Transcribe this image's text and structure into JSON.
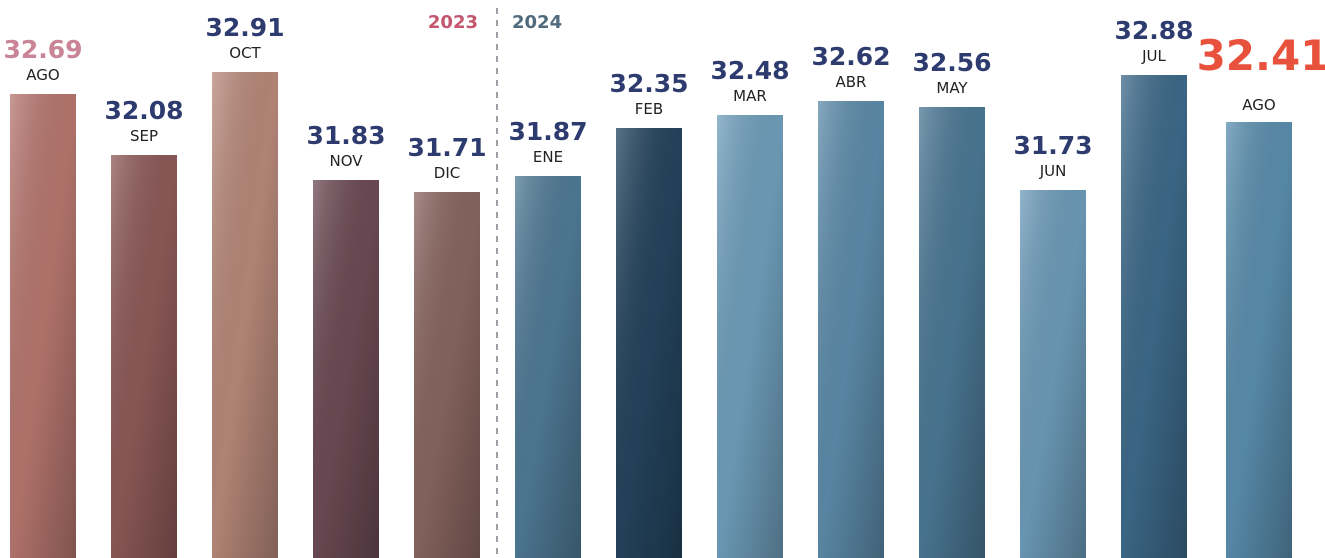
{
  "chart_data": {
    "type": "bar",
    "ylim": [
      28.05,
      33.63
    ],
    "series": [
      {
        "name": "2023",
        "name_color": "#c4566e",
        "categories": [
          "AGO",
          "SEP",
          "OCT",
          "NOV",
          "DIC"
        ],
        "values": [
          32.69,
          32.08,
          32.91,
          31.83,
          31.71
        ],
        "colors": [
          "#b7776f",
          "#8e5a58",
          "#b8897a",
          "#6d4b55",
          "#8a6660"
        ],
        "label_colors": [
          "#c98597",
          "#2e3b6e",
          "#2e3b6e",
          "#2e3b6e",
          "#2e3b6e"
        ]
      },
      {
        "name": "2024",
        "name_color": "#4f6b7d",
        "categories": [
          "ENE",
          "FEB",
          "MAR",
          "ABR",
          "MAY",
          "JUN",
          "JUL",
          "AGO"
        ],
        "values": [
          31.87,
          32.35,
          32.48,
          32.62,
          32.56,
          31.73,
          32.88,
          32.41
        ],
        "colors": [
          "#4f7a96",
          "#24445e",
          "#6f9fbc",
          "#5d8cab",
          "#4b7895",
          "#6d9cba",
          "#3d6a8a",
          "#5a8eae"
        ],
        "label_colors": [
          "#2e3b6e",
          "#2e3b6e",
          "#2e3b6e",
          "#2e3b6e",
          "#2e3b6e",
          "#2e3b6e",
          "#2e3b6e",
          "#e8523c"
        ]
      }
    ]
  }
}
